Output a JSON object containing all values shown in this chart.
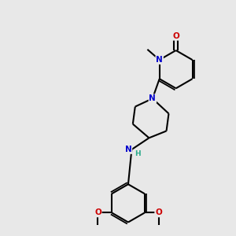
{
  "background_color": "#e8e8e8",
  "atom_colors": {
    "N": "#0000cc",
    "O": "#cc0000",
    "C": "#000000",
    "H": "#2aaa8a"
  },
  "bond_color": "#000000",
  "bond_width": 1.5,
  "dbo": 0.08,
  "figsize": [
    3.0,
    3.0
  ],
  "dpi": 100
}
